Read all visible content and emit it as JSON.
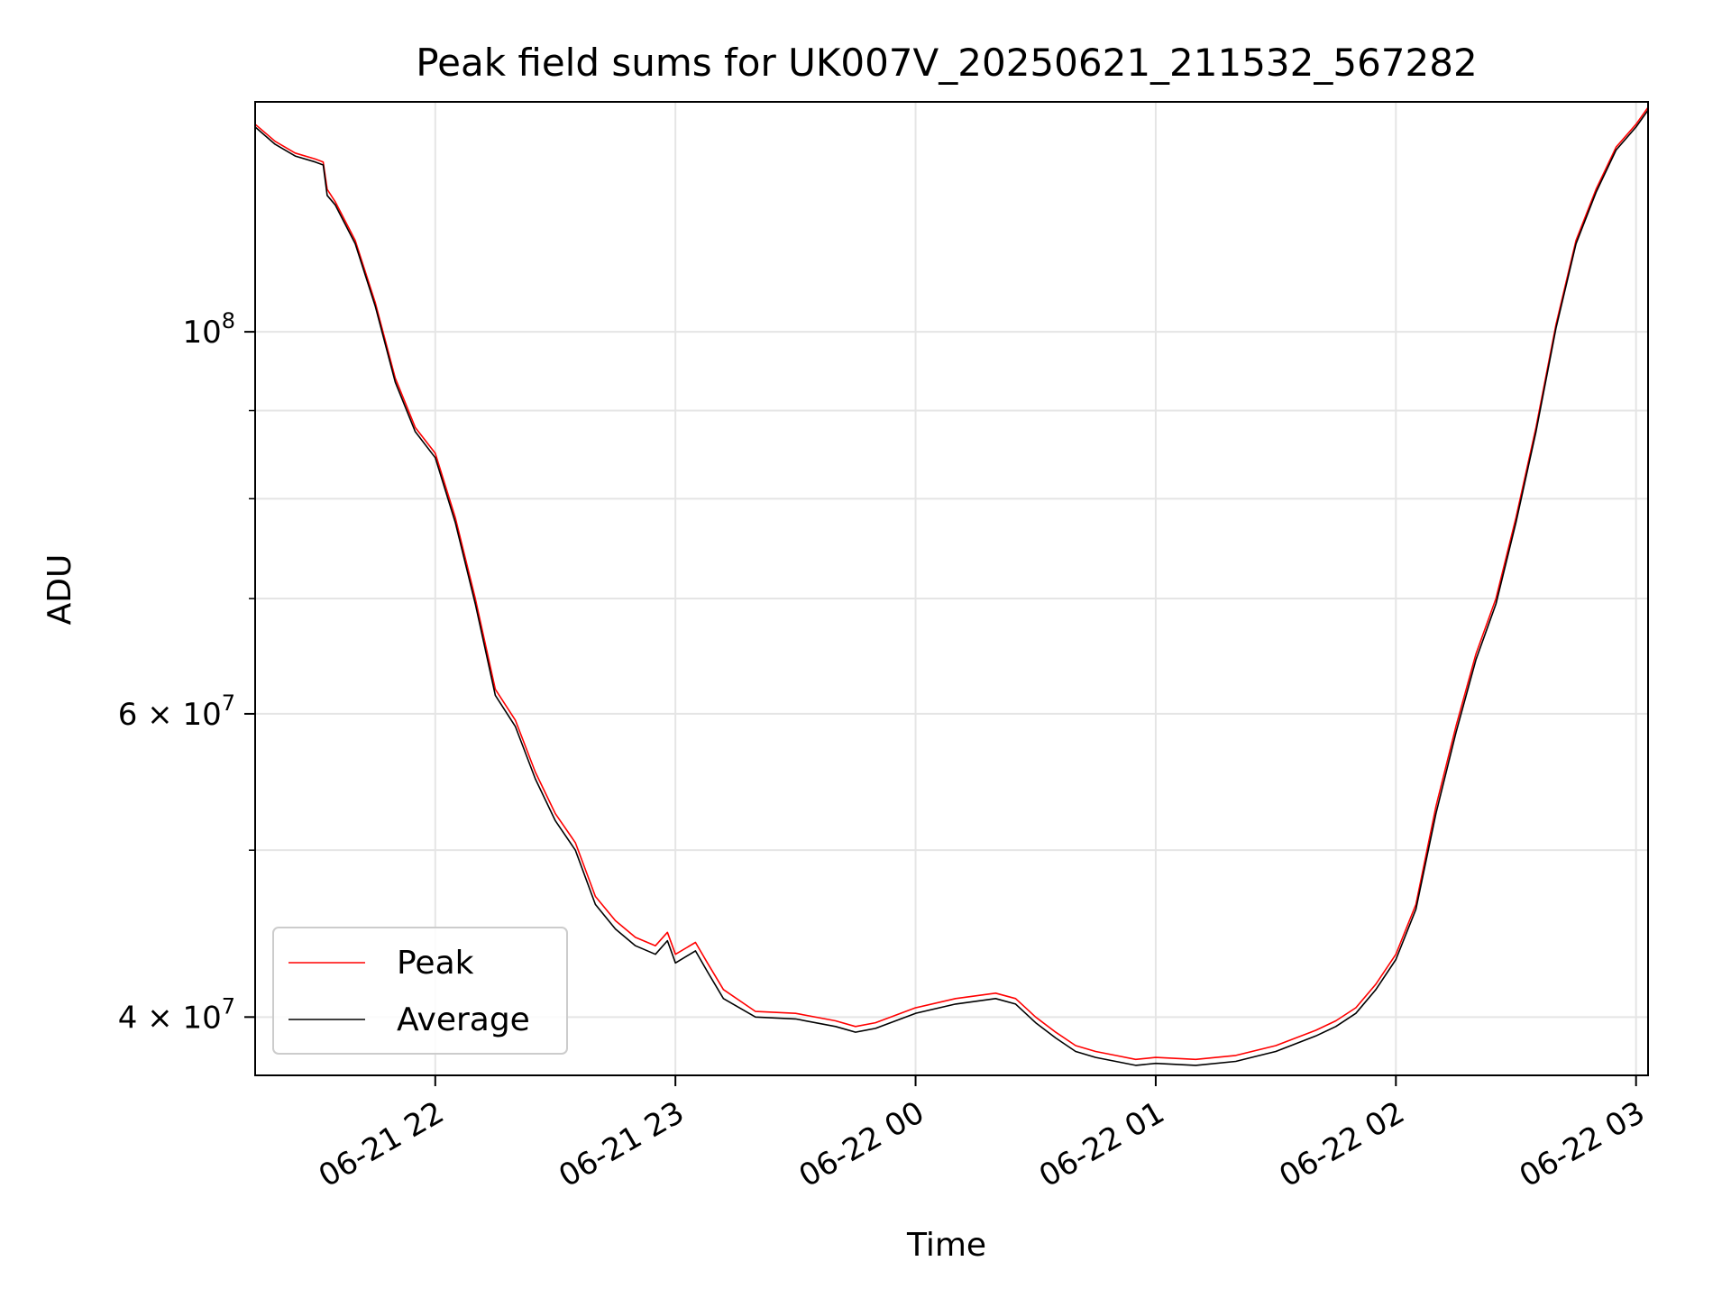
{
  "chart_data": {
    "type": "line",
    "title": "Peak field sums for UK007V_20250621_211532_567282",
    "xlabel": "Time",
    "ylabel": "ADU",
    "yscale": "log",
    "grid": true,
    "legend_position": "lower-left",
    "xlim": [
      "06-21 21:15",
      "06-22 03:03"
    ],
    "ylim": [
      37000000,
      136000000
    ],
    "x_ticks": [
      "06-21 22",
      "06-21 23",
      "06-22 00",
      "06-22 01",
      "06-22 02",
      "06-22 03"
    ],
    "y_ticks": [
      {
        "value": 40000000,
        "label": "4 × 10^7",
        "mantissa": "4",
        "exp": "7"
      },
      {
        "value": 60000000,
        "label": "6 × 10^7",
        "mantissa": "6",
        "exp": "7"
      },
      {
        "value": 100000000,
        "label": "10^8",
        "mantissa": "",
        "exp": "8"
      }
    ],
    "y_minor_ticks": [
      50000000,
      70000000,
      80000000,
      90000000
    ],
    "x_times": [
      "06-21 21:15",
      "06-21 21:20",
      "06-21 21:25",
      "06-21 21:30",
      "06-21 21:32",
      "06-21 21:33",
      "06-21 21:35",
      "06-21 21:40",
      "06-21 21:45",
      "06-21 21:50",
      "06-21 21:55",
      "06-21 22:00",
      "06-21 22:05",
      "06-21 22:10",
      "06-21 22:15",
      "06-21 22:20",
      "06-21 22:25",
      "06-21 22:30",
      "06-21 22:35",
      "06-21 22:40",
      "06-21 22:45",
      "06-21 22:50",
      "06-21 22:55",
      "06-21 22:58",
      "06-21 23:00",
      "06-21 23:05",
      "06-21 23:08",
      "06-21 23:12",
      "06-21 23:20",
      "06-21 23:30",
      "06-21 23:40",
      "06-21 23:45",
      "06-21 23:50",
      "06-22 00:00",
      "06-22 00:10",
      "06-22 00:20",
      "06-22 00:25",
      "06-22 00:30",
      "06-22 00:35",
      "06-22 00:40",
      "06-22 00:45",
      "06-22 00:50",
      "06-22 00:55",
      "06-22 01:00",
      "06-22 01:10",
      "06-22 01:20",
      "06-22 01:30",
      "06-22 01:40",
      "06-22 01:45",
      "06-22 01:50",
      "06-22 01:55",
      "06-22 02:00",
      "06-22 02:05",
      "06-22 02:10",
      "06-22 02:15",
      "06-22 02:20",
      "06-22 02:25",
      "06-22 02:30",
      "06-22 02:35",
      "06-22 02:40",
      "06-22 02:45",
      "06-22 02:50",
      "06-22 02:55",
      "06-22 03:00",
      "06-22 03:03"
    ],
    "series": [
      {
        "name": "Peak",
        "color": "#ff0000",
        "values": [
          132000000,
          129000000,
          127000000,
          126000000,
          125500000,
          121000000,
          119000000,
          113000000,
          104000000,
          94000000,
          88000000,
          85000000,
          78000000,
          70000000,
          62000000,
          59500000,
          55500000,
          52500000,
          50500000,
          47000000,
          45500000,
          44500000,
          44000000,
          44800000,
          43500000,
          44200000,
          43000000,
          41500000,
          40300000,
          40200000,
          39800000,
          39500000,
          39700000,
          40500000,
          41000000,
          41300000,
          41000000,
          40000000,
          39200000,
          38500000,
          38200000,
          38000000,
          37800000,
          37900000,
          37800000,
          38000000,
          38500000,
          39300000,
          39800000,
          40500000,
          41800000,
          43500000,
          46500000,
          53000000,
          59000000,
          65000000,
          70000000,
          78000000,
          88000000,
          101000000,
          113000000,
          121000000,
          128000000,
          132000000,
          135000000
        ]
      },
      {
        "name": "Average",
        "color": "#000000",
        "values": [
          131500000,
          128500000,
          126500000,
          125500000,
          125000000,
          120000000,
          118500000,
          112500000,
          103500000,
          93500000,
          87500000,
          84500000,
          77500000,
          69500000,
          61500000,
          59000000,
          55000000,
          52000000,
          50000000,
          46500000,
          45000000,
          44000000,
          43500000,
          44300000,
          43000000,
          43700000,
          42500000,
          41000000,
          40000000,
          39900000,
          39500000,
          39200000,
          39400000,
          40200000,
          40700000,
          41000000,
          40700000,
          39700000,
          38900000,
          38200000,
          37900000,
          37700000,
          37500000,
          37600000,
          37500000,
          37700000,
          38200000,
          39000000,
          39500000,
          40200000,
          41500000,
          43200000,
          46200000,
          52500000,
          58500000,
          64500000,
          69500000,
          77500000,
          87500000,
          100500000,
          112500000,
          120500000,
          127500000,
          131500000,
          134500000
        ]
      }
    ]
  }
}
